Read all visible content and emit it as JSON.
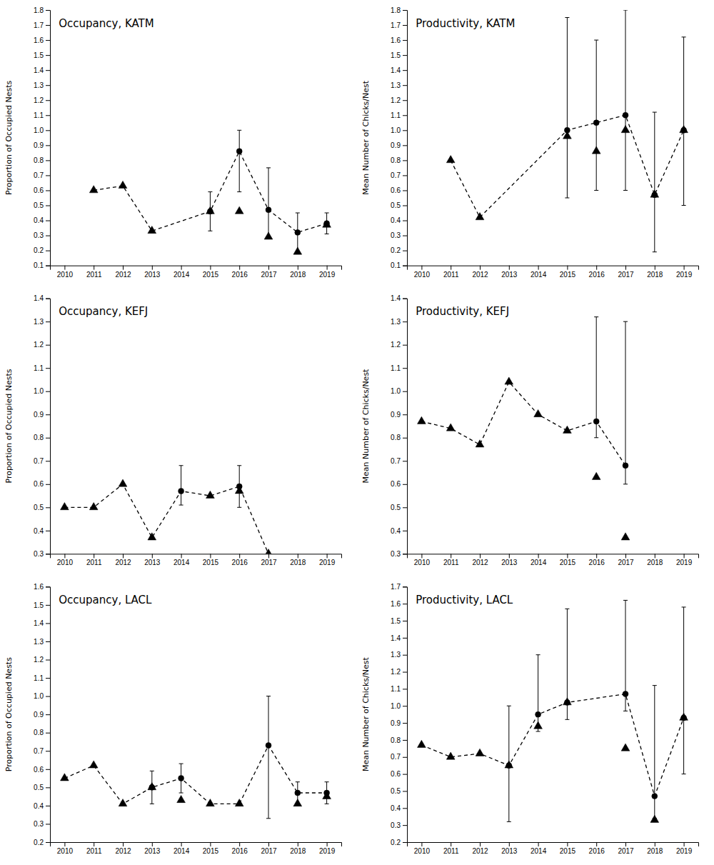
{
  "chart_data": [
    {
      "type": "line",
      "title": "Occupancy, KATM",
      "ylabel": "Proportion of Occupied Nests",
      "xlim": [
        2009.5,
        2019.5
      ],
      "xticks": [
        2010,
        2011,
        2012,
        2013,
        2014,
        2015,
        2016,
        2017,
        2018,
        2019
      ],
      "ylim": [
        0.1,
        1.8
      ],
      "yticks": [
        0.1,
        0.2,
        0.3,
        0.4,
        0.5,
        0.6,
        0.7,
        0.8,
        0.9,
        {
          "value": 1.0,
          "label": "1.0"
        },
        1.1,
        1.2,
        1.3,
        1.4,
        1.5,
        1.6,
        1.7,
        1.8
      ],
      "grid": false,
      "series": [
        {
          "type": "line",
          "line_style": "dashed",
          "color": "#000000",
          "x": [
            2011,
            2012,
            2013,
            2015,
            2016,
            2017,
            2018,
            2019
          ],
          "values": [
            0.6,
            0.63,
            0.33,
            0.46,
            0.86,
            0.47,
            0.32,
            0.38
          ]
        },
        {
          "type": "scatter",
          "marker": "triangle",
          "color": "#000000",
          "x": [
            2011,
            2012,
            2013,
            2015,
            2016,
            2017,
            2018,
            2019
          ],
          "values": [
            0.6,
            0.63,
            0.33,
            0.46,
            0.46,
            0.29,
            0.19,
            0.37
          ]
        },
        {
          "type": "scatter",
          "marker": "circle",
          "color": "#000000",
          "x": [
            2015,
            2016,
            2017,
            2018,
            2019
          ],
          "values": [
            0.46,
            0.86,
            0.47,
            0.32,
            0.38
          ],
          "error_lo": [
            0.13,
            0.27,
            0.18,
            0.13,
            0.07
          ],
          "error_hi": [
            0.13,
            0.14,
            0.28,
            0.13,
            0.07
          ]
        }
      ]
    },
    {
      "type": "line",
      "title": "Productivity, KATM",
      "ylabel": "Mean Number of Chicks/Nest",
      "xlim": [
        2009.5,
        2019.5
      ],
      "xticks": [
        2010,
        2011,
        2012,
        2013,
        2014,
        2015,
        2016,
        2017,
        2018,
        2019
      ],
      "ylim": [
        0.1,
        1.8
      ],
      "yticks": [
        0.1,
        0.2,
        0.3,
        0.4,
        0.5,
        0.6,
        0.7,
        0.8,
        0.9,
        {
          "value": 1.0,
          "label": "1.0"
        },
        1.1,
        1.2,
        1.3,
        1.4,
        1.5,
        1.6,
        1.7,
        1.8
      ],
      "grid": false,
      "series": [
        {
          "type": "line",
          "line_style": "dashed",
          "color": "#000000",
          "x": [
            2011,
            2012,
            2015,
            2016,
            2017,
            2018,
            2019
          ],
          "values": [
            0.8,
            0.42,
            1.0,
            1.05,
            1.1,
            0.57,
            1.0
          ]
        },
        {
          "type": "scatter",
          "marker": "triangle",
          "color": "#000000",
          "x": [
            2011,
            2012,
            2015,
            2016,
            2017,
            2018,
            2019
          ],
          "values": [
            0.8,
            0.42,
            0.96,
            0.86,
            1.0,
            0.57,
            1.0
          ]
        },
        {
          "type": "scatter",
          "marker": "circle",
          "color": "#000000",
          "x": [
            2015,
            2016,
            2017,
            2018,
            2019
          ],
          "values": [
            1.0,
            1.05,
            1.1,
            0.57,
            1.0
          ],
          "error_lo": [
            0.45,
            0.45,
            0.5,
            0.38,
            0.5
          ],
          "error_hi": [
            0.75,
            0.55,
            0.7,
            0.55,
            0.62
          ]
        }
      ]
    },
    {
      "type": "line",
      "title": "Occupancy, KEFJ",
      "ylabel": "Proportion of Occupied Nests",
      "xlim": [
        2009.5,
        2019.5
      ],
      "xticks": [
        2010,
        2011,
        2012,
        2013,
        2014,
        2015,
        2016,
        2017,
        2018,
        2019
      ],
      "ylim": [
        0.3,
        1.4
      ],
      "yticks": [
        0.3,
        0.4,
        0.5,
        0.6,
        0.7,
        0.8,
        0.9,
        {
          "value": 1.0,
          "label": "1.0"
        },
        1.1,
        1.2,
        1.3,
        1.4
      ],
      "grid": false,
      "series": [
        {
          "type": "line",
          "line_style": "dashed",
          "color": "#000000",
          "x": [
            2010,
            2011,
            2012,
            2013,
            2014,
            2015,
            2016,
            2017
          ],
          "values": [
            0.5,
            0.5,
            0.6,
            0.37,
            0.57,
            0.55,
            0.59,
            0.3
          ]
        },
        {
          "type": "scatter",
          "marker": "triangle",
          "color": "#000000",
          "x": [
            2010,
            2011,
            2012,
            2013,
            2015,
            2016,
            2017
          ],
          "values": [
            0.5,
            0.5,
            0.6,
            0.37,
            0.55,
            0.57,
            0.3
          ]
        },
        {
          "type": "scatter",
          "marker": "circle",
          "color": "#000000",
          "x": [
            2014,
            2016
          ],
          "values": [
            0.57,
            0.59
          ],
          "error_lo": [
            0.06,
            0.09
          ],
          "error_hi": [
            0.11,
            0.09
          ]
        }
      ]
    },
    {
      "type": "line",
      "title": "Productivity, KEFJ",
      "ylabel": "Mean Number of Chicks/Nest",
      "xlim": [
        2009.5,
        2019.5
      ],
      "xticks": [
        2010,
        2011,
        2012,
        2013,
        2014,
        2015,
        2016,
        2017,
        2018,
        2019
      ],
      "ylim": [
        0.3,
        1.4
      ],
      "yticks": [
        0.3,
        0.4,
        0.5,
        0.6,
        0.7,
        0.8,
        0.9,
        {
          "value": 1.0,
          "label": "1.0"
        },
        1.1,
        1.2,
        1.3,
        1.4
      ],
      "grid": false,
      "series": [
        {
          "type": "line",
          "line_style": "dashed",
          "color": "#000000",
          "x": [
            2010,
            2011,
            2012,
            2013,
            2014,
            2015,
            2016,
            2017
          ],
          "values": [
            0.87,
            0.84,
            0.77,
            1.04,
            0.9,
            0.83,
            0.87,
            0.68
          ]
        },
        {
          "type": "scatter",
          "marker": "triangle",
          "color": "#000000",
          "x": [
            2010,
            2011,
            2012,
            2013,
            2014,
            2015,
            2016,
            2017
          ],
          "values": [
            0.87,
            0.84,
            0.77,
            1.04,
            0.9,
            0.83,
            0.63,
            0.37
          ]
        },
        {
          "type": "scatter",
          "marker": "circle",
          "color": "#000000",
          "x": [
            2016,
            2017
          ],
          "values": [
            0.87,
            0.68
          ],
          "error_lo": [
            0.07,
            0.08
          ],
          "error_hi": [
            0.45,
            0.62
          ]
        }
      ]
    },
    {
      "type": "line",
      "title": "Occupancy, LACL",
      "ylabel": "Proportion of Occupied Nests",
      "xlim": [
        2009.5,
        2019.5
      ],
      "xticks": [
        2010,
        2011,
        2012,
        2013,
        2014,
        2015,
        2016,
        2017,
        2018,
        2019
      ],
      "ylim": [
        0.2,
        1.6
      ],
      "yticks": [
        0.2,
        0.3,
        0.4,
        0.5,
        0.6,
        0.7,
        0.8,
        0.9,
        {
          "value": 1.0,
          "label": "1.0"
        },
        1.1,
        1.2,
        1.3,
        1.4,
        1.5,
        1.6
      ],
      "grid": false,
      "series": [
        {
          "type": "line",
          "line_style": "dashed",
          "color": "#000000",
          "x": [
            2010,
            2011,
            2012,
            2013,
            2014,
            2015,
            2016,
            2017,
            2018,
            2019
          ],
          "values": [
            0.55,
            0.62,
            0.41,
            0.5,
            0.55,
            0.41,
            0.41,
            0.73,
            0.47,
            0.47
          ]
        },
        {
          "type": "scatter",
          "marker": "triangle",
          "color": "#000000",
          "x": [
            2010,
            2011,
            2012,
            2013,
            2014,
            2015,
            2016,
            2018,
            2019
          ],
          "values": [
            0.55,
            0.62,
            0.41,
            0.5,
            0.43,
            0.41,
            0.41,
            0.41,
            0.45
          ]
        },
        {
          "type": "scatter",
          "marker": "circle",
          "color": "#000000",
          "x": [
            2013,
            2014,
            2017,
            2018,
            2019
          ],
          "values": [
            0.5,
            0.55,
            0.73,
            0.47,
            0.47
          ],
          "error_lo": [
            0.09,
            0.08,
            0.4,
            0.06,
            0.06
          ],
          "error_hi": [
            0.09,
            0.08,
            0.27,
            0.06,
            0.06
          ]
        }
      ]
    },
    {
      "type": "line",
      "title": "Productivity, LACL",
      "ylabel": "Mean Number of Chicks/Nest",
      "xlim": [
        2009.5,
        2019.5
      ],
      "xticks": [
        2010,
        2011,
        2012,
        2013,
        2014,
        2015,
        2016,
        2017,
        2018,
        2019
      ],
      "ylim": [
        0.2,
        1.7
      ],
      "yticks": [
        0.2,
        0.3,
        0.4,
        0.5,
        0.6,
        0.7,
        0.8,
        0.9,
        {
          "value": 1.0,
          "label": "1.0"
        },
        1.1,
        1.2,
        1.3,
        1.4,
        1.5,
        1.6,
        1.7
      ],
      "grid": false,
      "series": [
        {
          "type": "line",
          "line_style": "dashed",
          "color": "#000000",
          "x": [
            2010,
            2011,
            2012,
            2013,
            2014,
            2015,
            2017,
            2018,
            2019
          ],
          "values": [
            0.77,
            0.7,
            0.72,
            0.65,
            0.95,
            1.02,
            1.07,
            0.47,
            0.93
          ]
        },
        {
          "type": "scatter",
          "marker": "triangle",
          "color": "#000000",
          "x": [
            2010,
            2011,
            2012,
            2013,
            2014,
            2015,
            2017,
            2018,
            2019
          ],
          "values": [
            0.77,
            0.7,
            0.72,
            0.65,
            0.88,
            1.02,
            0.75,
            0.33,
            0.93
          ]
        },
        {
          "type": "scatter",
          "marker": "circle",
          "color": "#000000",
          "x": [
            2013,
            2014,
            2015,
            2017,
            2018,
            2019
          ],
          "values": [
            0.65,
            0.95,
            1.02,
            1.07,
            0.47,
            0.93
          ],
          "error_lo": [
            0.33,
            0.1,
            0.1,
            0.1,
            0.13,
            0.33
          ],
          "error_hi": [
            0.35,
            0.35,
            0.55,
            0.55,
            0.65,
            0.65
          ]
        }
      ]
    }
  ]
}
